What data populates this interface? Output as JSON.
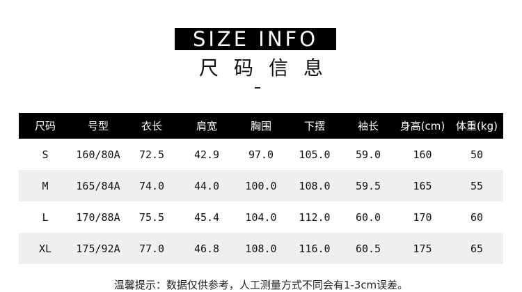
{
  "title": "SIZE INFO",
  "subtitle": "尺码信息",
  "table": {
    "headers": [
      "尺码",
      "号型",
      "衣长",
      "肩宽",
      "胸围",
      "下摆",
      "袖长",
      "身高(cm)",
      "体重(kg)"
    ],
    "rows": [
      [
        "S",
        "160/80A",
        "72.5",
        "42.9",
        "97.0",
        "105.0",
        "59.0",
        "160",
        "50"
      ],
      [
        "M",
        "165/84A",
        "74.0",
        "44.0",
        "100.0",
        "108.0",
        "59.5",
        "165",
        "55"
      ],
      [
        "L",
        "170/88A",
        "75.5",
        "45.4",
        "104.0",
        "112.0",
        "60.0",
        "170",
        "60"
      ],
      [
        "XL",
        "175/92A",
        "77.0",
        "46.8",
        "108.0",
        "116.0",
        "60.5",
        "175",
        "65"
      ]
    ]
  },
  "note": "温馨提示：数据仅供参考，人工测量方式不同会有1-3cm误差。",
  "colors": {
    "header_bg": "#000000",
    "alt_row_bg": "#efefef"
  }
}
